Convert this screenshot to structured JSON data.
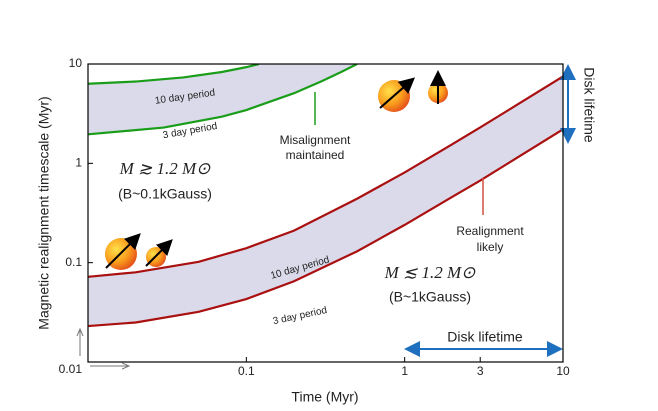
{
  "chart_data": {
    "type": "line",
    "xlabel": "Time (Myr)",
    "ylabel": "Magnetic realignment timescale (Myr)",
    "log_x": true,
    "log_y": true,
    "xlim": [
      0.01,
      10
    ],
    "ylim": [
      0.01,
      10
    ],
    "xticks": [
      0.1,
      1,
      3,
      10
    ],
    "yticks": [
      0.01,
      0.1,
      1,
      10
    ],
    "band_color": "#dadaea",
    "series": [
      {
        "name": "10 day period",
        "color": "#1a9e1a",
        "x": [
          0.01,
          0.02,
          0.04,
          0.07,
          0.1,
          0.12
        ],
        "values": [
          6.33,
          6.66,
          7.32,
          8.31,
          9.3,
          10
        ]
      },
      {
        "name": "3 day period",
        "color": "#1a9e1a",
        "x": [
          0.01,
          0.03,
          0.07,
          0.1,
          0.2,
          0.3,
          0.4,
          0.5
        ],
        "values": [
          1.96,
          2.29,
          2.95,
          3.44,
          5.08,
          6.72,
          8.36,
          10
        ]
      },
      {
        "name": "10 day period",
        "color": "#aa1010",
        "x": [
          0.01,
          0.02,
          0.05,
          0.1,
          0.2,
          0.5,
          1,
          2,
          3,
          5,
          10
        ],
        "values": [
          0.072,
          0.08,
          0.102,
          0.14,
          0.21,
          0.44,
          0.81,
          1.56,
          2.3,
          3.79,
          7.5
        ]
      },
      {
        "name": "3 day period",
        "color": "#aa1010",
        "x": [
          0.01,
          0.02,
          0.05,
          0.1,
          0.2,
          0.5,
          1,
          2,
          3,
          5,
          10
        ],
        "values": [
          0.023,
          0.025,
          0.032,
          0.043,
          0.065,
          0.13,
          0.24,
          0.46,
          0.67,
          1.11,
          2.2
        ]
      }
    ],
    "annotations": [
      "Misalignment",
      "maintained",
      "Realignment",
      "likely",
      "M ≳ 1.2 M⊙",
      "(B~0.1kGauss)",
      "M ≲ 1.2 M⊙",
      "(B~1kGauss)",
      "Disk lifetime",
      "Disk lifetime"
    ]
  }
}
